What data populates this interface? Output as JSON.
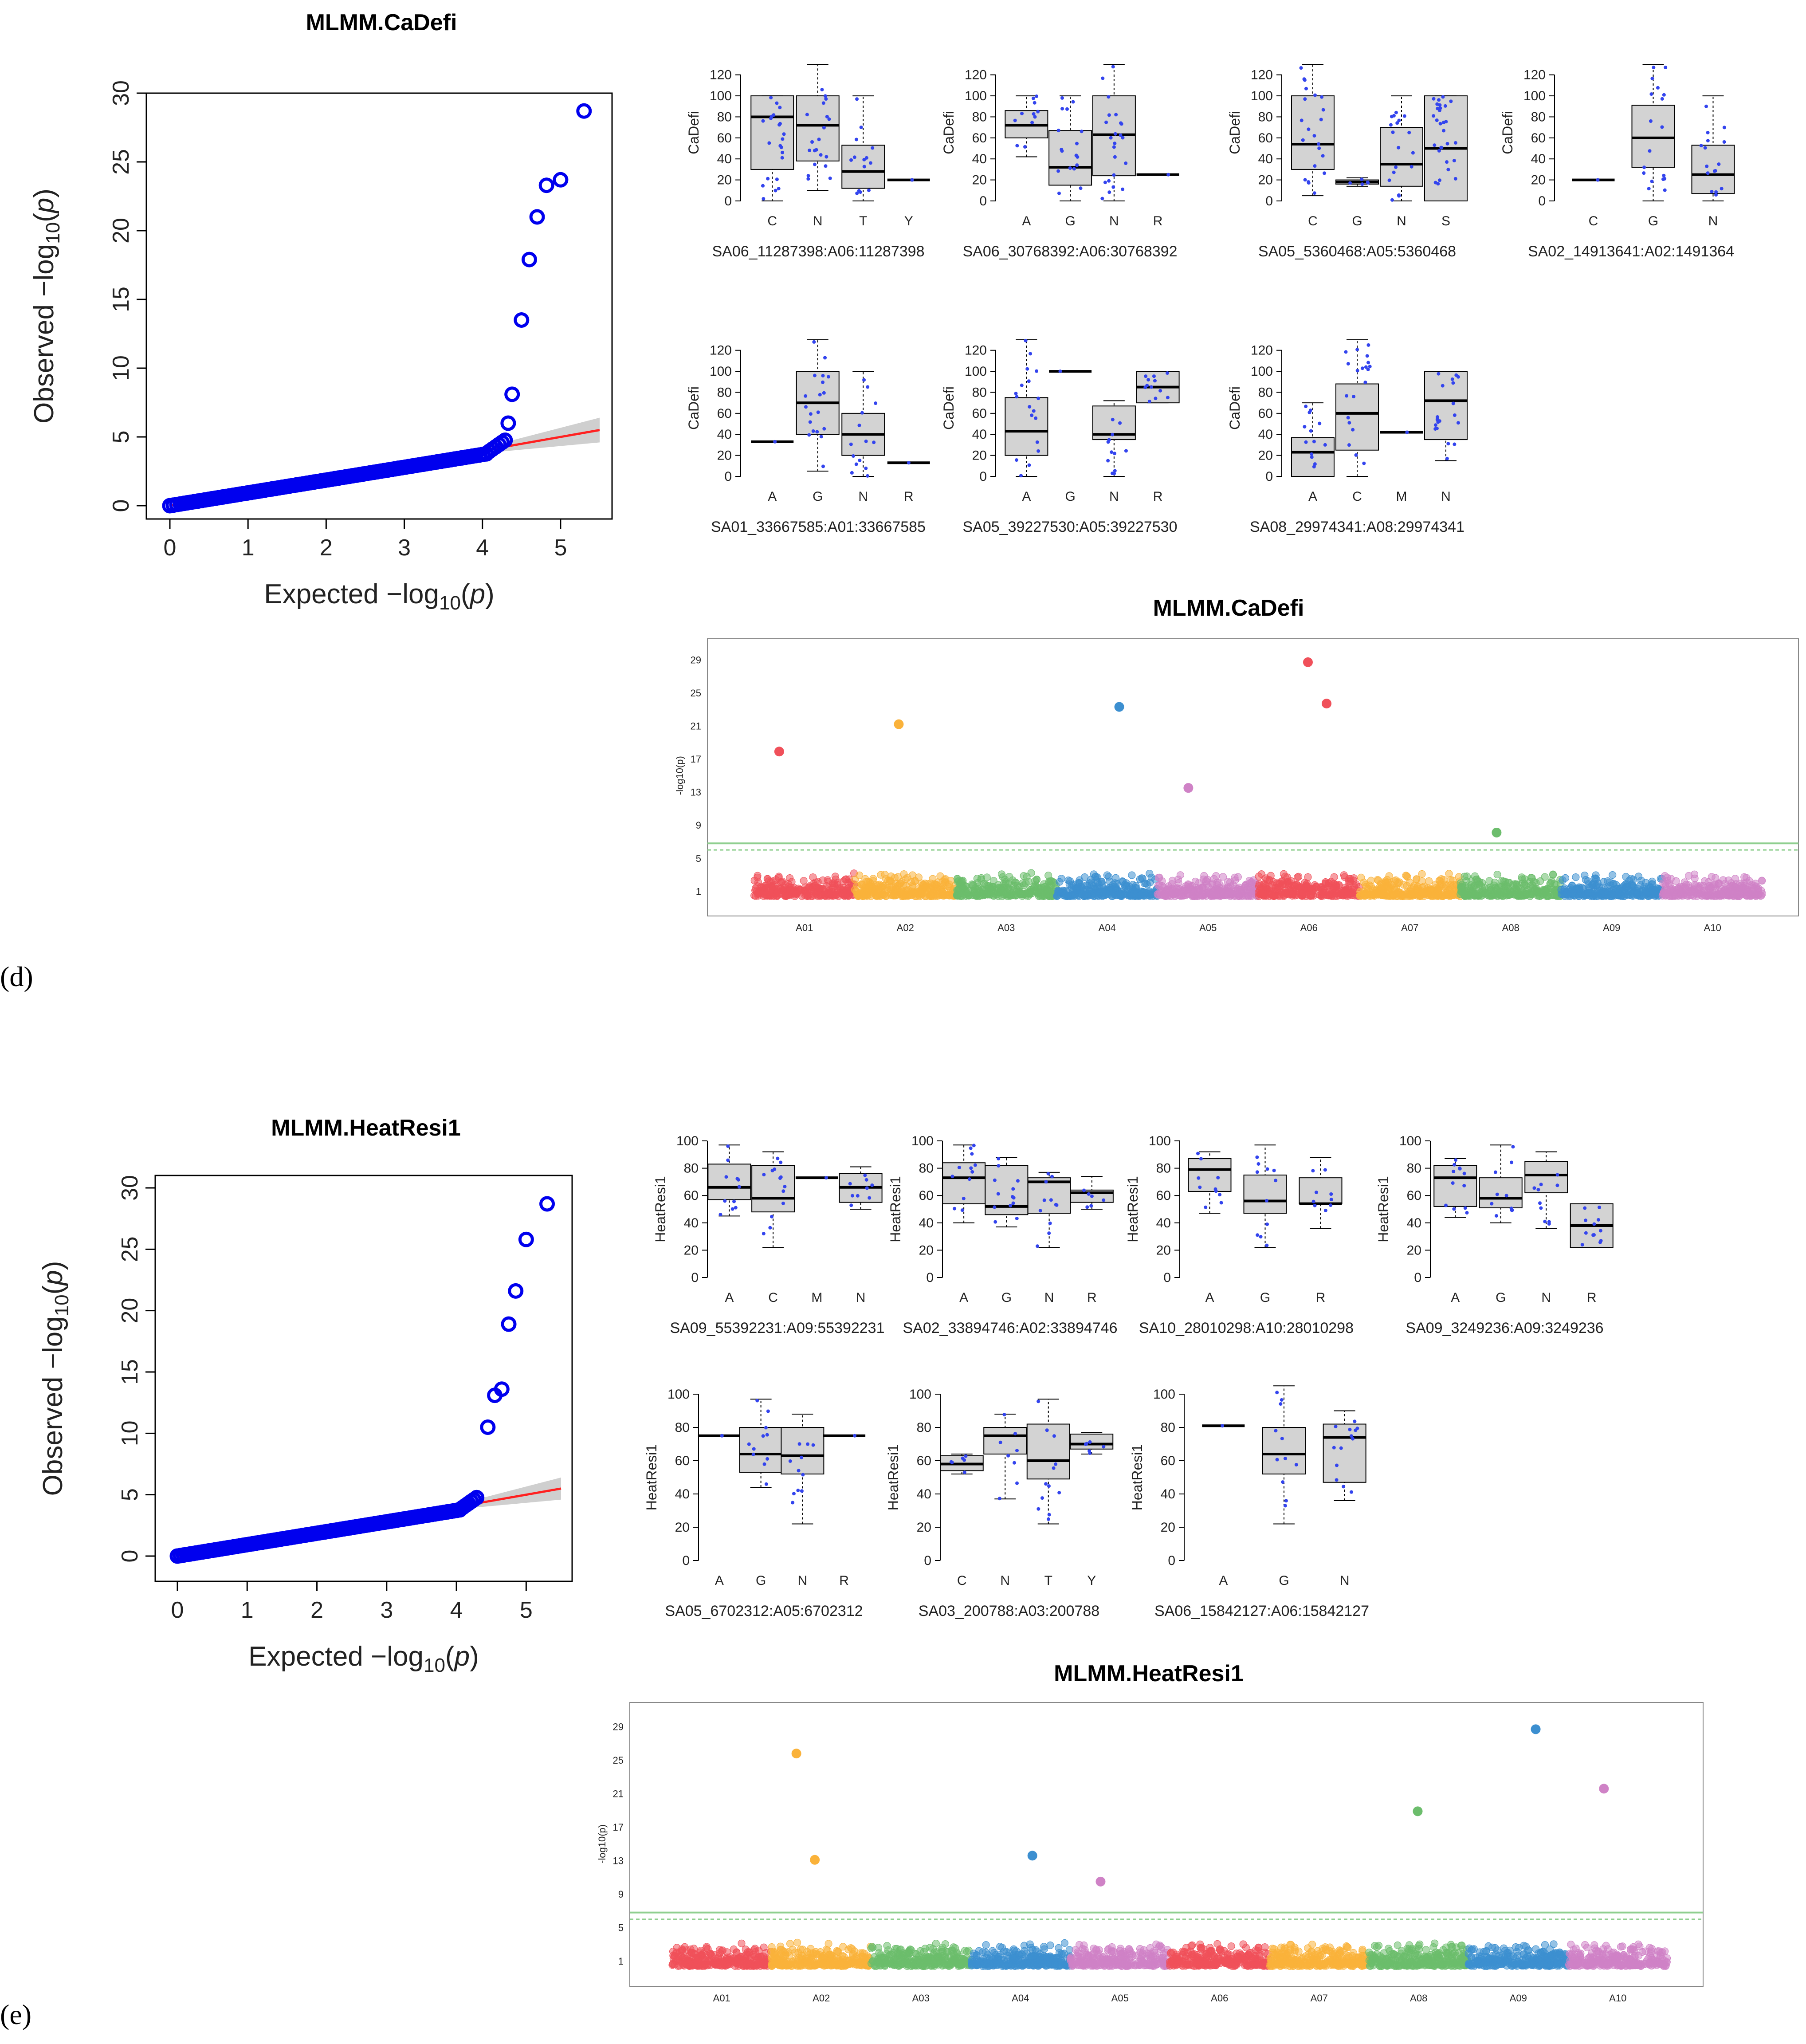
{
  "panel_labels": {
    "d": "(d)",
    "e": "(e)"
  },
  "chart_data": [
    {
      "id": "d-qq",
      "type": "scatter",
      "title": "MLMM.CaDefi",
      "xlabel": "Expected",
      "ylabel": "Observed",
      "x_ticks": [
        "0",
        "1",
        "2",
        "3",
        "4",
        "5"
      ],
      "y_ticks": [
        "0",
        "5",
        "10",
        "15",
        "20",
        "25",
        "30"
      ],
      "xlim": [
        0,
        5.5
      ],
      "ylim": [
        0,
        30
      ],
      "outliers": [
        [
          4.33,
          6.0
        ],
        [
          4.38,
          8.1
        ],
        [
          4.5,
          13.5
        ],
        [
          4.6,
          17.9
        ],
        [
          4.7,
          21.0
        ],
        [
          4.82,
          23.3
        ],
        [
          5.0,
          23.7
        ],
        [
          5.3,
          28.7
        ]
      ]
    },
    {
      "id": "e-qq",
      "type": "scatter",
      "title": "MLMM.HeatResi1",
      "xlabel": "Expected",
      "ylabel": "Observed",
      "x_ticks": [
        "0",
        "1",
        "2",
        "3",
        "4",
        "5"
      ],
      "y_ticks": [
        "0",
        "5",
        "10",
        "15",
        "20",
        "25",
        "30"
      ],
      "xlim": [
        0,
        5.5
      ],
      "ylim": [
        0,
        30
      ],
      "outliers": [
        [
          4.45,
          10.5
        ],
        [
          4.55,
          13.1
        ],
        [
          4.65,
          13.6
        ],
        [
          4.75,
          18.9
        ],
        [
          4.85,
          21.6
        ],
        [
          5.0,
          25.8
        ],
        [
          5.3,
          28.7
        ]
      ]
    },
    {
      "id": "d-box",
      "type": "box",
      "ylabel": "CaDefi",
      "y_ticks": [
        "0",
        "20",
        "40",
        "60",
        "80",
        "100",
        "120"
      ],
      "ylim": [
        0,
        130
      ],
      "plots": [
        {
          "label": "SA06_11287398:A06:11287398",
          "cats": [
            "C",
            "N",
            "T",
            "Y"
          ],
          "boxes": [
            [
              0,
              30,
              80,
              100,
              100
            ],
            [
              10,
              38,
              72,
              100,
              130
            ],
            [
              0,
              12,
              28,
              53,
              100
            ],
            [
              20,
              20,
              20,
              20,
              20
            ]
          ]
        },
        {
          "label": "SA06_30768392:A06:30768392",
          "cats": [
            "A",
            "G",
            "N",
            "R"
          ],
          "boxes": [
            [
              42,
              60,
              72,
              86,
              100
            ],
            [
              0,
              15,
              32,
              67,
              100
            ],
            [
              0,
              24,
              63,
              100,
              130
            ],
            [
              25,
              25,
              25,
              25,
              25
            ]
          ]
        },
        {
          "label": "SA05_5360468:A05:5360468",
          "cats": [
            "C",
            "G",
            "N",
            "S"
          ],
          "boxes": [
            [
              5,
              30,
              54,
              100,
              130
            ],
            [
              14,
              16,
              18,
              20,
              22
            ],
            [
              0,
              14,
              35,
              70,
              100
            ],
            [
              0,
              0,
              50,
              100,
              100
            ]
          ]
        },
        {
          "label": "SA02_14913641:A02:1491364",
          "cats": [
            "C",
            "G",
            "N"
          ],
          "boxes": [
            [
              20,
              20,
              20,
              20,
              20
            ],
            [
              0,
              32,
              60,
              91,
              130
            ],
            [
              0,
              7,
              25,
              53,
              100
            ]
          ]
        },
        {
          "label": "SA01_33667585:A01:33667585",
          "cats": [
            "A",
            "G",
            "N",
            "R"
          ],
          "boxes": [
            [
              33,
              33,
              33,
              33,
              33
            ],
            [
              5,
              40,
              70,
              100,
              130
            ],
            [
              0,
              20,
              40,
              60,
              100
            ],
            [
              13,
              13,
              13,
              13,
              13
            ]
          ]
        },
        {
          "label": "SA05_39227530:A05:39227530",
          "cats": [
            "A",
            "G",
            "N",
            "R"
          ],
          "boxes": [
            [
              0,
              20,
              43,
              75,
              130
            ],
            [
              100,
              100,
              100,
              100,
              100
            ],
            [
              0,
              35,
              40,
              67,
              72
            ],
            [
              70,
              70,
              85,
              100,
              100
            ]
          ]
        },
        {
          "label": "SA08_29974341:A08:29974341",
          "cats": [
            "A",
            "C",
            "M",
            "N"
          ],
          "boxes": [
            [
              0,
              0,
              23,
              37,
              70
            ],
            [
              0,
              25,
              60,
              88,
              130
            ],
            [
              42,
              42,
              42,
              42,
              42
            ],
            [
              15,
              35,
              72,
              100,
              100
            ]
          ]
        }
      ]
    },
    {
      "id": "e-box",
      "type": "box",
      "ylabel": "HeatResi1",
      "y_ticks": [
        "0",
        "20",
        "40",
        "60",
        "80",
        "100"
      ],
      "ylim": [
        0,
        100
      ],
      "plots": [
        {
          "label": "SA09_55392231:A09:55392231",
          "cats": [
            "A",
            "C",
            "M",
            "N"
          ],
          "boxes": [
            [
              45,
              57,
              66,
              83,
              97
            ],
            [
              22,
              48,
              58,
              82,
              92
            ],
            [
              73,
              73,
              73,
              73,
              73
            ],
            [
              50,
              55,
              66,
              76,
              81
            ]
          ]
        },
        {
          "label": "SA02_33894746:A02:33894746",
          "cats": [
            "A",
            "G",
            "N",
            "R"
          ],
          "boxes": [
            [
              40,
              54,
              73,
              84,
              97
            ],
            [
              37,
              46,
              52,
              82,
              88
            ],
            [
              22,
              47,
              70,
              73,
              77
            ],
            [
              50,
              55,
              62,
              64,
              74
            ]
          ]
        },
        {
          "label": "SA10_28010298:A10:28010298",
          "cats": [
            "A",
            "G",
            "R"
          ],
          "boxes": [
            [
              47,
              63,
              79,
              87,
              92
            ],
            [
              22,
              47,
              56,
              75,
              97
            ],
            [
              36,
              54,
              54,
              73,
              88
            ]
          ]
        },
        {
          "label": "SA09_3249236:A09:3249236",
          "cats": [
            "A",
            "G",
            "N",
            "R"
          ],
          "boxes": [
            [
              44,
              52,
              73,
              82,
              87
            ],
            [
              40,
              51,
              58,
              73,
              97
            ],
            [
              36,
              62,
              75,
              85,
              92
            ],
            [
              22,
              22,
              38,
              54,
              54
            ]
          ]
        },
        {
          "label": "SA05_6702312:A05:6702312",
          "cats": [
            "A",
            "G",
            "N",
            "R"
          ],
          "boxes": [
            [
              75,
              75,
              75,
              75,
              75
            ],
            [
              44,
              53,
              64,
              80,
              97
            ],
            [
              22,
              52,
              63,
              80,
              88
            ],
            [
              75,
              75,
              75,
              75,
              75
            ]
          ]
        },
        {
          "label": "SA03_200788:A03:200788",
          "cats": [
            "C",
            "N",
            "T",
            "Y"
          ],
          "boxes": [
            [
              52,
              54,
              58,
              63,
              64
            ],
            [
              37,
              64,
              75,
              80,
              88
            ],
            [
              22,
              49,
              60,
              82,
              97
            ],
            [
              64,
              67,
              70,
              76,
              77
            ]
          ]
        },
        {
          "label": "SA06_15842127:A06:15842127",
          "cats": [
            "A",
            "G",
            "N"
          ],
          "boxes": [
            [
              81,
              81,
              81,
              81,
              81
            ],
            [
              22,
              52,
              64,
              80,
              105
            ],
            [
              36,
              47,
              74,
              82,
              90
            ]
          ]
        }
      ]
    },
    {
      "id": "d-manhattan",
      "type": "scatter",
      "title": "MLMM.CaDefi",
      "ylabel": "-log10(p)",
      "chromosomes": [
        "A01",
        "A02",
        "A03",
        "A04",
        "A05",
        "A06",
        "A07",
        "A08",
        "A09",
        "A10"
      ],
      "y_ticks": [
        "1",
        "5",
        "9",
        "13",
        "17",
        "21",
        "25",
        "29"
      ],
      "ylim": [
        0,
        31
      ],
      "threshold": [
        6.8,
        6.0
      ],
      "highlights": [
        [
          "A01",
          17.9
        ],
        [
          "A02",
          21.2
        ],
        [
          "A04",
          23.3
        ],
        [
          "A05",
          13.5
        ],
        [
          "A06",
          28.7
        ],
        [
          "A06",
          23.7
        ],
        [
          "A08",
          8.1
        ]
      ]
    },
    {
      "id": "e-manhattan",
      "type": "scatter",
      "title": "MLMM.HeatResi1",
      "ylabel": "-log10(p)",
      "chromosomes": [
        "A01",
        "A02",
        "A03",
        "A04",
        "A05",
        "A06",
        "A07",
        "A08",
        "A09",
        "A10"
      ],
      "y_ticks": [
        "1",
        "5",
        "9",
        "13",
        "17",
        "21",
        "25",
        "29"
      ],
      "ylim": [
        0,
        31
      ],
      "threshold": [
        6.8,
        6.0
      ],
      "highlights": [
        [
          "A02",
          25.8
        ],
        [
          "A02",
          13.1
        ],
        [
          "A04",
          13.6
        ],
        [
          "A05",
          10.5
        ],
        [
          "A08",
          18.9
        ],
        [
          "A09",
          28.7
        ],
        [
          "A10",
          21.6
        ]
      ]
    }
  ],
  "colors": {
    "qq_points": "#0000ee",
    "qq_line": "#ff2020",
    "box_fill": "#d3d3d3",
    "box_points": "#3344ee",
    "threshold": "#8fcf8f",
    "chromosome": [
      "#f0505a",
      "#fab23a",
      "#6cbd6c",
      "#3c8fd0",
      "#cf82c6"
    ]
  }
}
